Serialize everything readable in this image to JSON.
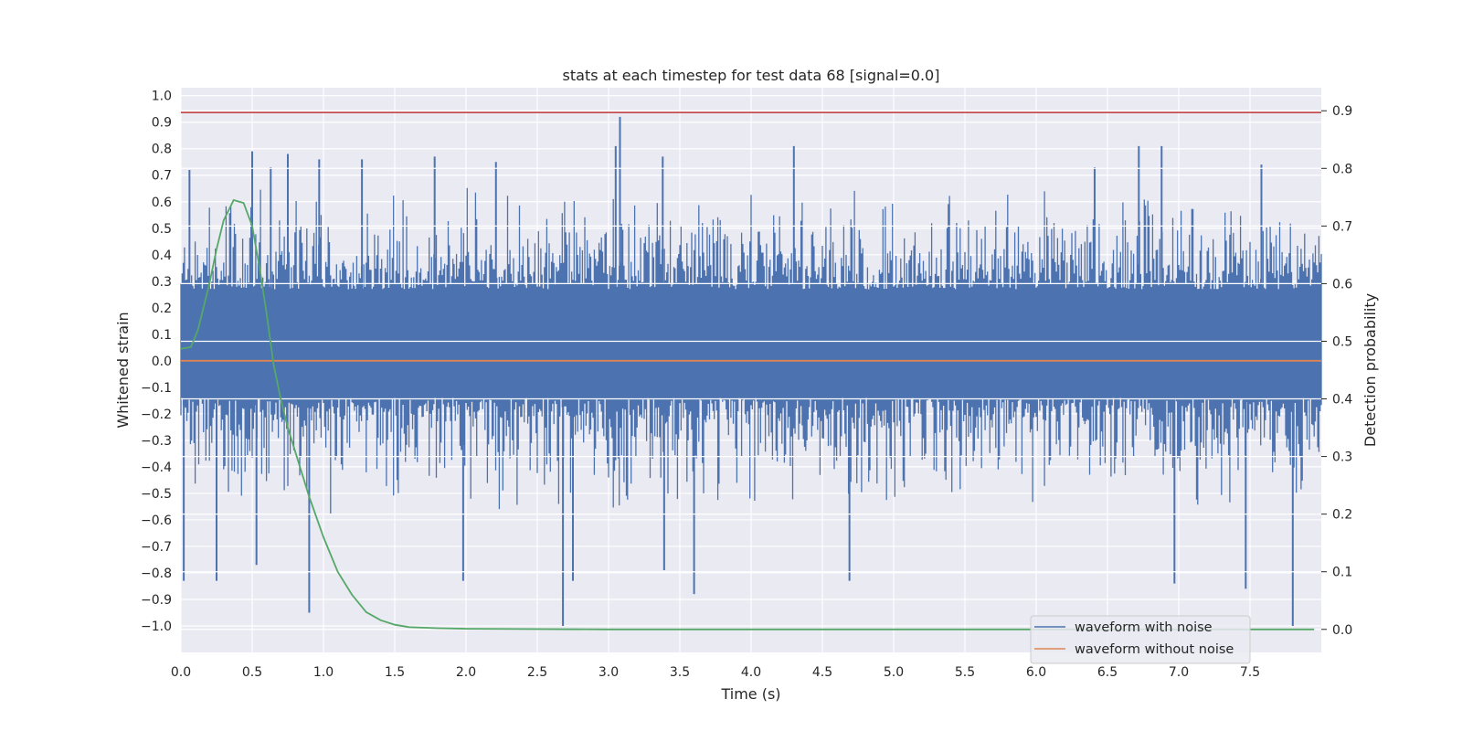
{
  "chart_data": {
    "type": "line",
    "title": "stats at each timestep for test data 68 [signal=0.0]",
    "xlabel": "Time (s)",
    "ylabel": "Whitened strain",
    "y2label": "Detection probability",
    "xlim": [
      0.0,
      8.0
    ],
    "ylim": [
      -1.1,
      1.03
    ],
    "y2lim": [
      -0.04,
      0.94
    ],
    "xticks": [
      "0.0",
      "0.5",
      "1.0",
      "1.5",
      "2.0",
      "2.5",
      "3.0",
      "3.5",
      "4.0",
      "4.5",
      "5.0",
      "5.5",
      "6.0",
      "6.5",
      "7.0",
      "7.5"
    ],
    "yticks": [
      "1.0",
      "0.9",
      "0.8",
      "0.7",
      "0.6",
      "0.5",
      "0.4",
      "0.3",
      "0.2",
      "0.1",
      "0.0",
      "−0.1",
      "−0.2",
      "−0.3",
      "−0.4",
      "−0.5",
      "−0.6",
      "−0.7",
      "−0.8",
      "−0.9",
      "−1.0"
    ],
    "y2ticks": [
      "0.9",
      "0.8",
      "0.7",
      "0.6",
      "0.5",
      "0.4",
      "0.3",
      "0.2",
      "0.1",
      "0.0"
    ],
    "grid": true,
    "legend": {
      "placement": "lower-right",
      "entries": [
        {
          "label": "waveform with noise",
          "color": "#4c72b0"
        },
        {
          "label": "waveform without noise",
          "color": "#dd8452"
        }
      ]
    },
    "series": [
      {
        "name": "waveform with noise",
        "color": "#4c72b0",
        "axis": "left",
        "kind": "noise",
        "band": [
          -0.14,
          0.27
        ],
        "upper_peaks": [
          [
            0.06,
            0.72
          ],
          [
            0.5,
            0.79
          ],
          [
            0.63,
            0.73
          ],
          [
            0.75,
            0.78
          ],
          [
            0.97,
            0.76
          ],
          [
            1.27,
            0.76
          ],
          [
            1.78,
            0.77
          ],
          [
            2.21,
            0.75
          ],
          [
            3.05,
            0.81
          ],
          [
            3.08,
            0.92
          ],
          [
            3.38,
            0.77
          ],
          [
            4.3,
            0.81
          ],
          [
            6.41,
            0.73
          ],
          [
            6.72,
            0.81
          ],
          [
            6.88,
            0.81
          ],
          [
            7.58,
            0.74
          ]
        ],
        "lower_peaks": [
          [
            0.02,
            -0.83
          ],
          [
            0.25,
            -0.83
          ],
          [
            0.53,
            -0.77
          ],
          [
            0.9,
            -0.95
          ],
          [
            1.98,
            -0.83
          ],
          [
            2.68,
            -1.0
          ],
          [
            2.75,
            -0.83
          ],
          [
            3.39,
            -0.79
          ],
          [
            3.6,
            -0.88
          ],
          [
            4.69,
            -0.83
          ],
          [
            6.97,
            -0.84
          ],
          [
            7.47,
            -0.86
          ],
          [
            7.8,
            -1.0
          ]
        ]
      },
      {
        "name": "waveform without noise",
        "color": "#dd8452",
        "axis": "left",
        "x": [
          0.0,
          8.0
        ],
        "y": [
          0.0,
          0.0
        ]
      },
      {
        "name": "",
        "color": "#55a868",
        "axis": "right",
        "x": [
          0.0,
          0.07,
          0.12,
          0.2,
          0.25,
          0.3,
          0.37,
          0.44,
          0.5,
          0.55,
          0.6,
          0.65,
          0.7,
          0.75,
          0.8,
          0.9,
          1.0,
          1.1,
          1.2,
          1.3,
          1.4,
          1.5,
          1.6,
          1.8,
          2.0,
          3.0,
          5.0,
          7.0,
          7.95
        ],
        "y": [
          0.487,
          0.49,
          0.52,
          0.6,
          0.66,
          0.71,
          0.745,
          0.74,
          0.7,
          0.63,
          0.55,
          0.46,
          0.4,
          0.35,
          0.31,
          0.23,
          0.16,
          0.1,
          0.06,
          0.03,
          0.016,
          0.008,
          0.004,
          0.002,
          0.001,
          0.0,
          0.0,
          0.0,
          0.0
        ]
      },
      {
        "name": "",
        "color": "#c44e52",
        "axis": "right",
        "x": [
          0.0,
          8.0
        ],
        "y": [
          0.897,
          0.897
        ]
      }
    ]
  }
}
